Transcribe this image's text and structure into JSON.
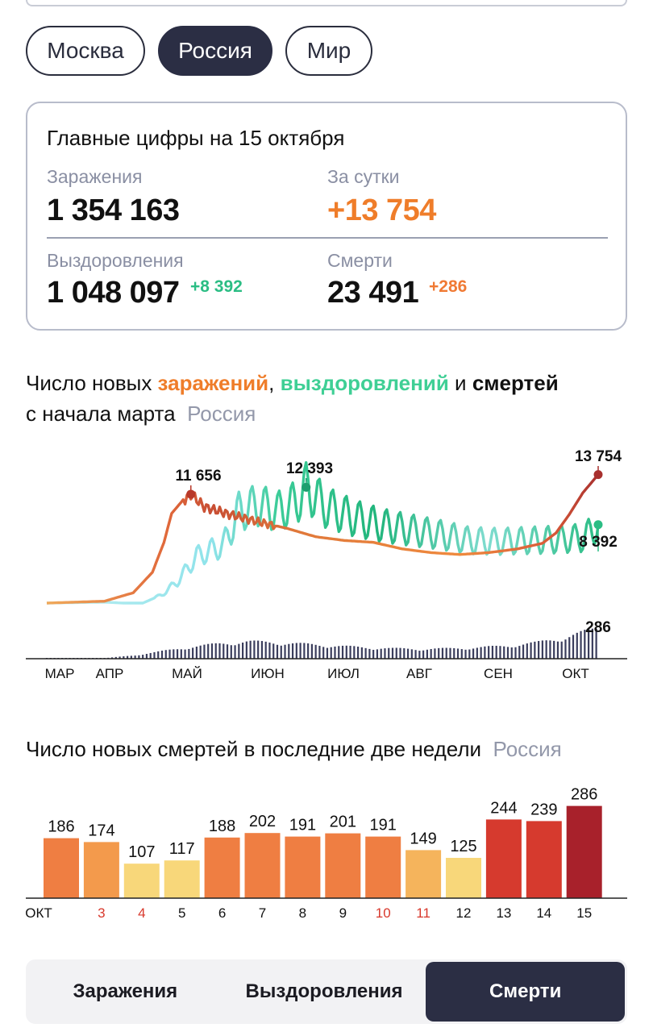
{
  "region_tabs": [
    {
      "label": "Москва",
      "active": false
    },
    {
      "label": "Россия",
      "active": true
    },
    {
      "label": "Мир",
      "active": false
    }
  ],
  "summary": {
    "title": "Главные цифры на 15 октября",
    "infections_label": "Заражения",
    "infections_value": "1 354 163",
    "daily_label": "За сутки",
    "daily_value": "+13 754",
    "recoveries_label": "Выздоровления",
    "recoveries_value": "1 048 097",
    "recoveries_delta": "+8 392",
    "deaths_label": "Смерти",
    "deaths_value": "23 491",
    "deaths_delta": "+286"
  },
  "main_heading": {
    "part1": "Число новых ",
    "infections": "заражений",
    "comma": ", ",
    "recoveries": "выздоровлений",
    "and": " и ",
    "deaths": "смертей",
    "line2": "с начала марта",
    "region": "Россия"
  },
  "bar_heading": {
    "text": "Число новых смертей в последние две недели",
    "region": "Россия"
  },
  "bottom_tabs": [
    {
      "label": "Заражения",
      "active": false
    },
    {
      "label": "Выздоровления",
      "active": false
    },
    {
      "label": "Смерти",
      "active": true
    }
  ],
  "colors": {
    "infections": "#ef7d2a",
    "infections_peak": "#b8392a",
    "recoveries": "#2bbd84",
    "recoveries_early": "#8ee3ea",
    "deaths_bars": "#3a3d5c",
    "accent_dark": "#2b2e44"
  },
  "chart_data": [
    {
      "type": "line",
      "title": "",
      "x_labels": [
        "МАР",
        "АПР",
        "МАЙ",
        "ИЮН",
        "ИЮЛ",
        "АВГ",
        "СЕН",
        "ОКТ"
      ],
      "ylim": [
        0,
        14500
      ],
      "series": [
        {
          "name": "заражений",
          "role": "infections",
          "points": [
            [
              0,
              0
            ],
            [
              30,
              200
            ],
            [
              45,
              1100
            ],
            [
              55,
              3300
            ],
            [
              61,
              6500
            ],
            [
              65,
              9600
            ],
            [
              70,
              10800
            ],
            [
              75,
              11656
            ],
            [
              82,
              10300
            ],
            [
              95,
              9500
            ],
            [
              110,
              8700
            ],
            [
              125,
              8000
            ],
            [
              140,
              7100
            ],
            [
              155,
              6700
            ],
            [
              170,
              6500
            ],
            [
              185,
              5800
            ],
            [
              200,
              5400
            ],
            [
              215,
              5200
            ],
            [
              230,
              5400
            ],
            [
              245,
              5800
            ],
            [
              258,
              6400
            ],
            [
              265,
              7500
            ],
            [
              272,
              9500
            ],
            [
              279,
              11800
            ],
            [
              287,
              13754
            ]
          ]
        },
        {
          "name": "выздоровлений",
          "role": "recoveries",
          "points": [
            [
              0,
              0
            ],
            [
              30,
              100
            ],
            [
              40,
              0
            ],
            [
              50,
              0
            ],
            [
              60,
              900
            ],
            [
              68,
              2300
            ],
            [
              78,
              5000
            ],
            [
              92,
              6200
            ],
            [
              100,
              9800
            ],
            [
              110,
              10500
            ],
            [
              120,
              9800
            ],
            [
              130,
              10800
            ],
            [
              135,
              12393
            ],
            [
              145,
              10300
            ],
            [
              160,
              9100
            ],
            [
              175,
              8300
            ],
            [
              190,
              7800
            ],
            [
              205,
              7300
            ],
            [
              220,
              6700
            ],
            [
              235,
              6600
            ],
            [
              250,
              6700
            ],
            [
              265,
              6800
            ],
            [
              280,
              7000
            ],
            [
              287,
              8392
            ]
          ]
        },
        {
          "name": "смертей",
          "role": "deaths",
          "points": [
            [
              0,
              0
            ],
            [
              30,
              5
            ],
            [
              45,
              30
            ],
            [
              60,
              70
            ],
            [
              75,
              110
            ],
            [
              90,
              140
            ],
            [
              105,
              160
            ],
            [
              120,
              150
            ],
            [
              135,
              135
            ],
            [
              150,
              120
            ],
            [
              165,
              105
            ],
            [
              180,
              95
            ],
            [
              195,
              90
            ],
            [
              210,
              95
            ],
            [
              225,
              105
            ],
            [
              240,
              120
            ],
            [
              255,
              150
            ],
            [
              270,
              200
            ],
            [
              287,
              286
            ]
          ]
        }
      ],
      "annotations": [
        {
          "label": "11 656",
          "series": "infections",
          "x": 75,
          "y": 11656
        },
        {
          "label": "12 393",
          "series": "recoveries",
          "x": 135,
          "y": 12393
        },
        {
          "label": "13 754",
          "series": "infections",
          "x": 287,
          "y": 13754
        },
        {
          "label": "8 392",
          "series": "recoveries",
          "x": 287,
          "y": 8392
        },
        {
          "label": "286",
          "series": "deaths",
          "x": 287,
          "y": 286
        }
      ]
    },
    {
      "type": "bar",
      "title": "Число новых смертей в последние две недели",
      "categories": [
        "ОКТ",
        "3",
        "4",
        "5",
        "6",
        "7",
        "8",
        "9",
        "10",
        "11",
        "12",
        "13",
        "14",
        "15"
      ],
      "values": [
        186,
        174,
        107,
        117,
        188,
        202,
        191,
        201,
        191,
        149,
        125,
        244,
        239,
        286
      ],
      "weekend_categories": [
        "3",
        "4",
        "10",
        "11"
      ],
      "ylim": [
        0,
        300
      ]
    }
  ]
}
